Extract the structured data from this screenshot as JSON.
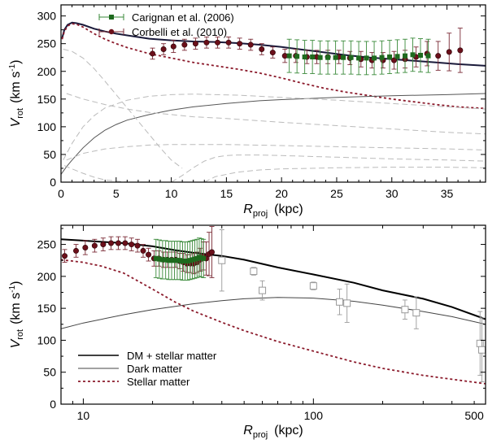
{
  "chart_data": [
    {
      "type": "line",
      "xlabel": "R",
      "xlabel_sub": "proj",
      "xunit": "(kpc)",
      "ylabel": "V",
      "ylabel_sub": "rot",
      "yunit_a": "(km s",
      "yunit_exp": "-1",
      "yunit_b": ")",
      "xlim": [
        0,
        38.5
      ],
      "ylim": [
        0,
        320
      ],
      "xticks": [
        0,
        5,
        10,
        15,
        20,
        25,
        30,
        35
      ],
      "yticks": [
        0,
        50,
        100,
        150,
        200,
        250,
        300
      ],
      "legend": [
        "Carignan et al. (2006)",
        "Corbelli et al. (2010)"
      ],
      "series": [
        {
          "name": "total",
          "style": "solid-thick",
          "color": "#1a1a3a",
          "x": [
            0.1,
            0.3,
            0.6,
            1.0,
            1.4,
            2,
            3,
            4,
            5,
            6,
            8,
            10,
            12,
            14,
            16,
            18,
            20,
            22,
            24,
            26,
            28,
            30,
            32,
            34,
            36,
            38.5
          ],
          "y": [
            260,
            275,
            284,
            288,
            287,
            284,
            277,
            272,
            268,
            265,
            259,
            256,
            254,
            253,
            251,
            248,
            244,
            239,
            234,
            229,
            225,
            222,
            219,
            216,
            213,
            210
          ]
        },
        {
          "name": "stellar",
          "style": "dotted",
          "color": "#8b1a2b",
          "x": [
            0.1,
            0.3,
            0.6,
            1.0,
            1.4,
            2,
            3,
            4,
            5,
            6,
            8,
            10,
            12,
            14,
            16,
            18,
            20,
            22,
            24,
            26,
            28,
            30,
            32,
            34,
            36,
            38.5
          ],
          "y": [
            258,
            272,
            282,
            286,
            285,
            280,
            268,
            258,
            250,
            243,
            232,
            224,
            216,
            210,
            204,
            197,
            188,
            178,
            169,
            162,
            156,
            150,
            145,
            140,
            136,
            133
          ]
        },
        {
          "name": "dark",
          "style": "solid-thin",
          "color": "#555555",
          "x": [
            0,
            0.5,
            1,
            2,
            3,
            4,
            5,
            6,
            8,
            10,
            12,
            15,
            18,
            20,
            25,
            30,
            35,
            38.5
          ],
          "y": [
            14,
            28,
            40,
            62,
            80,
            94,
            104,
            112,
            122,
            130,
            136,
            142,
            147,
            149,
            153,
            156,
            158,
            160
          ]
        },
        {
          "name": "comp1",
          "style": "dashed",
          "color": "#bbbbbb",
          "x": [
            0.2,
            1,
            2,
            3,
            4,
            5,
            6,
            7,
            8,
            9,
            10,
            11
          ],
          "y": [
            240,
            236,
            224,
            205,
            182,
            158,
            134,
            110,
            86,
            62,
            40,
            25
          ]
        },
        {
          "name": "comp2",
          "style": "dashed",
          "color": "#bbbbbb",
          "x": [
            0.2,
            1,
            2,
            3,
            4,
            6,
            8,
            10,
            12,
            14,
            16,
            18,
            20,
            25,
            30,
            35,
            38.5
          ],
          "y": [
            40,
            70,
            100,
            120,
            134,
            148,
            155,
            158,
            159,
            158,
            157,
            155,
            153,
            148,
            142,
            136,
            132
          ]
        },
        {
          "name": "comp3",
          "style": "dashed",
          "color": "#bbbbbb",
          "x": [
            0.5,
            2,
            4,
            6,
            8,
            10,
            12,
            15,
            20,
            25,
            30,
            35,
            38.5
          ],
          "y": [
            160,
            150,
            140,
            132,
            126,
            122,
            118,
            115,
            108,
            102,
            96,
            90,
            87
          ]
        },
        {
          "name": "comp4",
          "style": "dashed",
          "color": "#bbbbbb",
          "x": [
            0.5,
            2,
            4,
            6,
            8,
            10,
            12,
            15,
            20,
            25,
            30,
            35,
            38.5
          ],
          "y": [
            40,
            52,
            60,
            64,
            67,
            68,
            68,
            68,
            66,
            64,
            62,
            60,
            58
          ]
        },
        {
          "name": "comp5",
          "style": "dashed",
          "color": "#bbbbbb",
          "x": [
            10,
            11,
            12,
            13,
            14,
            15,
            16,
            18,
            20,
            25,
            30,
            35,
            38.5
          ],
          "y": [
            0,
            12,
            26,
            38,
            45,
            48,
            49,
            49,
            48,
            45,
            42,
            40,
            38
          ]
        },
        {
          "name": "comp6",
          "style": "dashed",
          "color": "#bbbbbb",
          "x": [
            0.3,
            1,
            2,
            3,
            4,
            6,
            8,
            10,
            12
          ],
          "y": [
            30,
            24,
            16,
            9,
            4,
            0,
            0,
            0,
            0
          ]
        },
        {
          "name": "comp7",
          "style": "dashed",
          "color": "#bbbbbb",
          "x": [
            13,
            14,
            16,
            18,
            20,
            25,
            30,
            35,
            38.5
          ],
          "y": [
            0,
            10,
            18,
            22,
            24,
            26,
            27,
            27,
            26
          ]
        }
      ],
      "points": [
        {
          "name": "Corbelli et al. (2010)",
          "marker": "circle",
          "color": "#6b0f1a",
          "x": [
            8.3,
            9.3,
            10.2,
            11.2,
            12.2,
            13.2,
            14.2,
            15.2,
            16.2,
            17.2,
            18.2,
            19.2,
            20.3,
            21.3,
            22.3,
            23.2,
            24.2,
            25.2,
            26.2,
            27.2,
            28.2,
            29.2,
            30.2,
            31.2,
            32.2,
            33.2,
            34.2,
            35.2,
            36.2
          ],
          "y": [
            232,
            240,
            245,
            248,
            250,
            252,
            252,
            252,
            250,
            248,
            240,
            234,
            228,
            228,
            226,
            226,
            226,
            226,
            224,
            222,
            220,
            220,
            220,
            222,
            226,
            232,
            228,
            235,
            238
          ],
          "err": [
            10,
            10,
            11,
            10,
            10,
            10,
            10,
            10,
            10,
            10,
            10,
            10,
            12,
            12,
            12,
            12,
            12,
            12,
            12,
            14,
            14,
            14,
            16,
            16,
            18,
            22,
            26,
            34,
            40
          ]
        },
        {
          "name": "Carignan et al. (2006)",
          "marker": "square",
          "color": "#1e6a1e",
          "x": [
            20.7,
            21.4,
            22.1,
            22.8,
            23.5,
            24.2,
            24.9,
            25.6,
            26.3,
            27.0,
            27.7,
            28.4,
            29.1,
            29.8,
            30.5,
            31.2,
            31.9,
            32.6,
            33.3
          ],
          "y": [
            228,
            227,
            226,
            226,
            225,
            225,
            225,
            225,
            225,
            224,
            224,
            224,
            225,
            226,
            227,
            228,
            230,
            229,
            228
          ],
          "err": [
            30,
            30,
            30,
            30,
            30,
            30,
            30,
            30,
            30,
            30,
            30,
            30,
            30,
            30,
            30,
            30,
            30,
            30,
            30
          ]
        }
      ]
    },
    {
      "type": "line",
      "xscale": "log",
      "xlabel": "R",
      "xlabel_sub": "proj",
      "xunit": "(kpc)",
      "ylabel": "V",
      "ylabel_sub": "rot",
      "yunit_a": "(km s",
      "yunit_exp": "-1",
      "yunit_b": ")",
      "xlim": [
        8,
        560
      ],
      "ylim": [
        0,
        280
      ],
      "xticks": [
        10,
        100,
        500
      ],
      "yticks": [
        0,
        50,
        100,
        150,
        200,
        250
      ],
      "legend": [
        "DM + stellar matter",
        "Dark matter",
        "Stellar matter"
      ],
      "series": [
        {
          "name": "DM + stellar matter",
          "style": "solid-thick",
          "color": "#000000",
          "x": [
            8,
            10,
            12,
            15,
            20,
            25,
            30,
            40,
            50,
            70,
            100,
            150,
            200,
            300,
            400,
            560
          ],
          "y": [
            258,
            256,
            254,
            252,
            247,
            241,
            237,
            232,
            226,
            214,
            203,
            190,
            178,
            165,
            152,
            133
          ]
        },
        {
          "name": "Dark matter",
          "style": "solid-thin",
          "color": "#444444",
          "x": [
            8,
            10,
            15,
            20,
            30,
            40,
            50,
            70,
            100,
            150,
            200,
            300,
            400,
            560
          ],
          "y": [
            118,
            127,
            140,
            148,
            157,
            162,
            165,
            167,
            166,
            161,
            155,
            145,
            137,
            125
          ]
        },
        {
          "name": "Stellar matter",
          "style": "dotted",
          "color": "#8b1a2b",
          "x": [
            8,
            10,
            12,
            15,
            20,
            25,
            30,
            40,
            50,
            70,
            100,
            150,
            200,
            300,
            400,
            560
          ],
          "y": [
            226,
            222,
            216,
            205,
            180,
            160,
            146,
            128,
            115,
            98,
            83,
            66,
            56,
            45,
            39,
            32
          ]
        }
      ],
      "points": [
        {
          "name": "corbelli-log",
          "marker": "circle",
          "color": "#6b0f1a",
          "x": [
            8.3,
            9.3,
            10.2,
            11.2,
            12.2,
            13.2,
            14.2,
            15.2,
            16.2,
            17.2,
            18.2,
            19.2,
            20.3,
            21.3,
            22.3,
            23.2,
            24.2,
            25.2,
            26.2,
            27.2,
            28.2,
            29.2,
            30.2,
            31.2,
            32.2,
            33.2,
            34.2,
            35.2,
            36.2
          ],
          "y": [
            232,
            240,
            245,
            248,
            250,
            252,
            252,
            252,
            250,
            248,
            240,
            234,
            228,
            228,
            226,
            226,
            226,
            226,
            224,
            222,
            220,
            220,
            220,
            222,
            226,
            232,
            228,
            235,
            238
          ],
          "err": [
            10,
            10,
            11,
            10,
            10,
            10,
            10,
            10,
            10,
            10,
            10,
            10,
            12,
            12,
            12,
            12,
            12,
            12,
            12,
            14,
            14,
            14,
            16,
            16,
            18,
            22,
            26,
            34,
            40
          ]
        },
        {
          "name": "carignan-log",
          "marker": "square",
          "color": "#1e6a1e",
          "x": [
            20.7,
            21.4,
            22.1,
            22.8,
            23.5,
            24.2,
            24.9,
            25.6,
            26.3,
            27.0,
            27.7,
            28.4,
            29.1,
            29.8,
            30.5,
            31.2,
            31.9,
            32.6,
            33.3
          ],
          "y": [
            228,
            227,
            226,
            226,
            225,
            225,
            225,
            225,
            225,
            224,
            224,
            224,
            225,
            226,
            227,
            228,
            230,
            229,
            228
          ],
          "err": [
            30,
            30,
            30,
            30,
            30,
            30,
            30,
            30,
            30,
            30,
            30,
            30,
            30,
            30,
            30,
            30,
            30,
            30,
            30
          ]
        },
        {
          "name": "outer-halo",
          "marker": "open-square",
          "color": "#999999",
          "x": [
            40,
            55,
            60,
            100,
            130,
            140,
            250,
            280,
            530,
            540
          ],
          "y": [
            225,
            208,
            178,
            185,
            160,
            158,
            148,
            143,
            95,
            85
          ],
          "err": [
            48,
            6,
            15,
            6,
            20,
            30,
            15,
            25,
            50,
            50
          ]
        }
      ]
    }
  ]
}
